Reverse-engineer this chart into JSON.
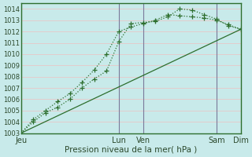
{
  "title": "",
  "xlabel": "Pression niveau de la mer( hPa )",
  "ylabel": "",
  "background_color": "#c8eaea",
  "grid_color": "#e8c8c8",
  "line_color": "#2d6e2d",
  "vline_color": "#7a7a9a",
  "ylim": [
    1003,
    1014.5
  ],
  "xlim": [
    0,
    108
  ],
  "ytick_vals": [
    1003,
    1004,
    1005,
    1006,
    1007,
    1008,
    1009,
    1010,
    1011,
    1012,
    1013,
    1014
  ],
  "xtick_positions": [
    0,
    48,
    60,
    96,
    108
  ],
  "xtick_labels": [
    "Jeu",
    "Lun",
    "Ven",
    "Sam",
    "Dim"
  ],
  "vlines": [
    48,
    60,
    96
  ],
  "series": [
    {
      "x": [
        0,
        6,
        12,
        18,
        24,
        30,
        36,
        42,
        48,
        54,
        60,
        66,
        72,
        78,
        84,
        90,
        96,
        102,
        108
      ],
      "y": [
        1003.0,
        1004.0,
        1004.8,
        1005.3,
        1006.0,
        1007.0,
        1007.8,
        1008.5,
        1011.1,
        1012.7,
        1012.8,
        1012.9,
        1013.3,
        1014.0,
        1013.9,
        1013.5,
        1013.1,
        1012.5,
        1012.2
      ],
      "style": "dotted",
      "marker": "+",
      "markersize": 4
    },
    {
      "x": [
        0,
        6,
        12,
        18,
        24,
        30,
        36,
        42,
        48,
        54,
        60,
        66,
        72,
        78,
        84,
        90,
        96,
        102,
        108
      ],
      "y": [
        1003.0,
        1004.2,
        1005.0,
        1005.8,
        1006.5,
        1007.5,
        1008.6,
        1010.0,
        1012.0,
        1012.4,
        1012.7,
        1013.0,
        1013.5,
        1013.4,
        1013.3,
        1013.2,
        1013.0,
        1012.6,
        1012.2
      ],
      "style": "dotted",
      "marker": "+",
      "markersize": 4
    },
    {
      "x": [
        0,
        108
      ],
      "y": [
        1003.0,
        1012.2
      ],
      "style": "-",
      "marker": "None",
      "markersize": 0
    }
  ]
}
